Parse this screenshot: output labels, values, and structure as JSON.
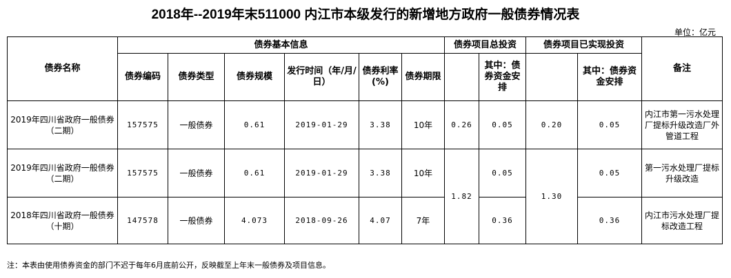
{
  "title": "2018年--2019年末511000 内江市本级发行的新增地方政府一般债券情况表",
  "unit": "单位：亿元",
  "headers": {
    "basic": "债券基本信息",
    "total": "债券项目总投资",
    "realized": "债券项目已实现投资",
    "name": "债券名称",
    "code": "债券编码",
    "type": "债券类型",
    "scale": "债券规模",
    "date": "发行时间（年/月/日）",
    "rate": "债券利率(%)",
    "term": "债券期限",
    "total_bond": "其中：债券资金安排",
    "realized_bond": "其中：债券资金安排",
    "remark": "备注"
  },
  "rows": [
    {
      "name": "2019年四川省政府一般债券（二期）",
      "code": "157575",
      "type": "一般债券",
      "scale": "0.61",
      "date": "2019-01-29",
      "rate": "3.38",
      "term": "10年",
      "total": "0.26",
      "total_bond": "0.05",
      "realized": "0.20",
      "realized_bond": "0.05",
      "remark": "内江市第一污水处理厂提标升级改造厂外管道工程"
    },
    {
      "name": "2019年四川省政府一般债券（二期）",
      "code": "157575",
      "type": "一般债券",
      "scale": "0.61",
      "date": "2019-01-29",
      "rate": "3.38",
      "term": "10年",
      "total": "1.82",
      "total_bond": "0.05",
      "realized": "1.30",
      "realized_bond": "0.05",
      "remark": "第一污水处理厂提标升级改造"
    },
    {
      "name": "2018年四川省政府一般债券（十期）",
      "code": "147578",
      "type": "一般债券",
      "scale": "4.073",
      "date": "2018-09-26",
      "rate": "4.07",
      "term": "7年",
      "total_bond": "0.36",
      "realized_bond": "0.36",
      "remark": "内江市污水处理厂提标改造工程"
    }
  ],
  "note": "注：本表由使用债券资金的部门不迟于每年6月底前公开，反映截至上年末一般债券及项目信息。"
}
